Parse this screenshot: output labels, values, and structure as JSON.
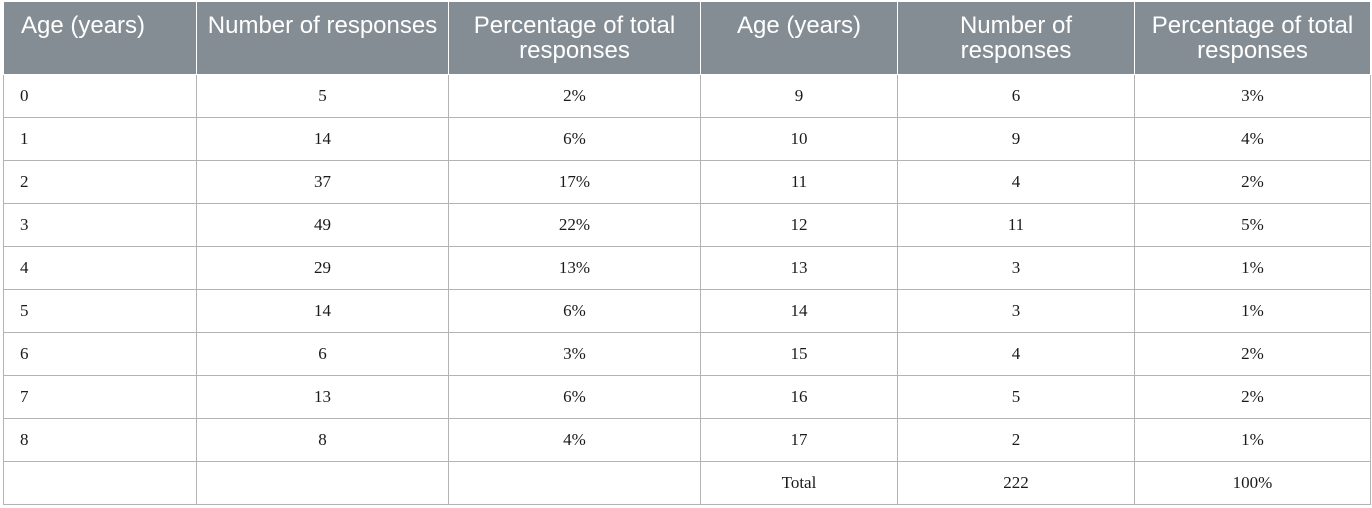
{
  "table": {
    "headers": [
      "Age (years)",
      "Number of responses",
      "Percentage of total responses",
      "Age (years)",
      "Number of responses",
      "Percentage of total responses"
    ],
    "rows": [
      [
        "0",
        "5",
        "2%",
        "9",
        "6",
        "3%"
      ],
      [
        "1",
        "14",
        "6%",
        "10",
        "9",
        "4%"
      ],
      [
        "2",
        "37",
        "17%",
        "11",
        "4",
        "2%"
      ],
      [
        "3",
        "49",
        "22%",
        "12",
        "11",
        "5%"
      ],
      [
        "4",
        "29",
        "13%",
        "13",
        "3",
        "1%"
      ],
      [
        "5",
        "14",
        "6%",
        "14",
        "3",
        "1%"
      ],
      [
        "6",
        "6",
        "3%",
        "15",
        "4",
        "2%"
      ],
      [
        "7",
        "13",
        "6%",
        "16",
        "5",
        "2%"
      ],
      [
        "8",
        "8",
        "4%",
        "17",
        "2",
        "1%"
      ],
      [
        "",
        "",
        "",
        "Total",
        "222",
        "100%"
      ]
    ],
    "colors": {
      "header_background": "#858d94",
      "header_text": "#ffffff",
      "border": "#b3b3b3"
    }
  }
}
